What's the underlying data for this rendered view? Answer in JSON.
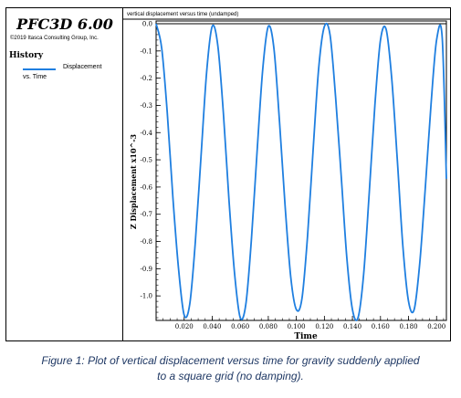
{
  "sidebar": {
    "app_title": "PFC3D 6.00",
    "copyright": "©2019 Itasca Consulting Group, Inc.",
    "history_heading": "History",
    "legend_label_1": "Displacement",
    "legend_label_2": "vs. Time"
  },
  "caption": {
    "line1": "Figure 1: Plot of vertical displacement versus time for gravity suddenly applied",
    "line2": "to a square grid (no damping)."
  },
  "chart_data": {
    "type": "line",
    "title": "vertical displacement versus time (undamped)",
    "xlabel": "Time",
    "ylabel": "Z Displacement  x10^-3",
    "xlim": [
      0.0,
      0.207
    ],
    "ylim": [
      -1.09,
      0.01
    ],
    "x_ticks": [
      0.02,
      0.04,
      0.06,
      0.08,
      0.1,
      0.12,
      0.14,
      0.16,
      0.18,
      0.2
    ],
    "x_tick_labels": [
      "0.020",
      "0.040",
      "0.060",
      "0.080",
      "0.100",
      "0.120",
      "0.140",
      "0.160",
      "0.180",
      "0.200"
    ],
    "y_ticks": [
      0.0,
      -0.1,
      -0.2,
      -0.3,
      -0.4,
      -0.5,
      -0.6,
      -0.7,
      -0.8,
      -0.9,
      -1.0
    ],
    "y_tick_labels": [
      "0.0",
      "-0.1",
      "-0.2",
      "-0.3",
      "-0.4",
      "-0.5",
      "-0.6",
      "-0.7",
      "-0.8",
      "-0.9",
      "-1.0"
    ],
    "grid": false,
    "series_color": "#1f7fe0",
    "zero_line": {
      "y": 0.0,
      "color": "#000000"
    },
    "series": [
      {
        "name": "Displacement vs. Time",
        "x": [
          0.0,
          0.004,
          0.008,
          0.012,
          0.016,
          0.02,
          0.024,
          0.028,
          0.032,
          0.036,
          0.04,
          0.044,
          0.048,
          0.052,
          0.056,
          0.06,
          0.064,
          0.068,
          0.072,
          0.076,
          0.08,
          0.084,
          0.088,
          0.092,
          0.096,
          0.1,
          0.104,
          0.108,
          0.112,
          0.116,
          0.12,
          0.124,
          0.128,
          0.132,
          0.136,
          0.14,
          0.144,
          0.148,
          0.152,
          0.156,
          0.16,
          0.164,
          0.168,
          0.172,
          0.176,
          0.18,
          0.184,
          0.188,
          0.192,
          0.196,
          0.2,
          0.204,
          0.207
        ],
        "y": [
          0.0,
          -0.09,
          -0.33,
          -0.64,
          -0.9,
          -1.07,
          -1.03,
          -0.8,
          -0.49,
          -0.18,
          -0.01,
          -0.08,
          -0.33,
          -0.65,
          -0.92,
          -1.08,
          -1.03,
          -0.79,
          -0.47,
          -0.17,
          -0.01,
          -0.09,
          -0.36,
          -0.67,
          -0.93,
          -1.05,
          -1.01,
          -0.78,
          -0.46,
          -0.16,
          -0.01,
          -0.04,
          -0.27,
          -0.56,
          -0.86,
          -1.05,
          -1.08,
          -0.92,
          -0.62,
          -0.3,
          -0.06,
          -0.02,
          -0.2,
          -0.5,
          -0.82,
          -1.02,
          -1.05,
          -0.88,
          -0.6,
          -0.3,
          -0.06,
          -0.05,
          -0.57
        ]
      }
    ]
  }
}
